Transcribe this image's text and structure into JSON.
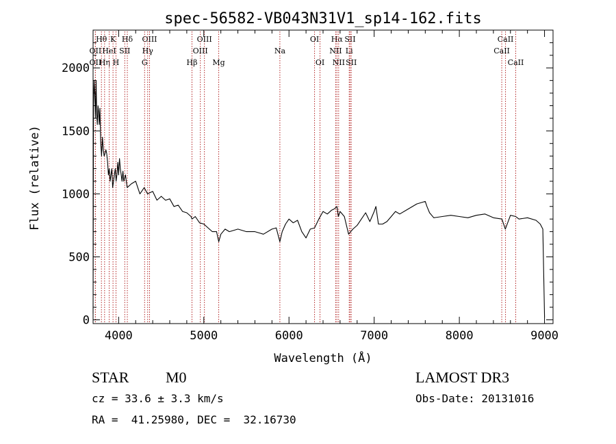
{
  "colors": {
    "line": "#000000",
    "marker": "#b22222",
    "background": "#ffffff"
  },
  "info": {
    "object_class": "STAR",
    "subclass": "M0",
    "survey": "LAMOST DR3",
    "cz": "cz = 33.6 ± 3.3 km/s",
    "obs_date": "Obs-Date: 20131016",
    "coords": "RA =  41.25980, DEC =  32.16730"
  },
  "chart_data": {
    "type": "line",
    "title": "spec-56582-VB043N31V1_sp14-162.fits",
    "xlabel": "Wavelength (Å)",
    "ylabel": "Flux (relative)",
    "xlim": [
      3700,
      9100
    ],
    "ylim": [
      -30,
      2300
    ],
    "xticks": [
      4000,
      5000,
      6000,
      7000,
      8000,
      9000
    ],
    "yticks": [
      0,
      500,
      1000,
      1500,
      2000
    ],
    "grid": false,
    "legend": "none",
    "series": [
      {
        "x": [
          3700,
          3705,
          3712,
          3720,
          3728,
          3735,
          3742,
          3750,
          3758,
          3765,
          3772,
          3780,
          3790,
          3800,
          3810,
          3820,
          3830,
          3840,
          3850,
          3860,
          3870,
          3880,
          3890,
          3900,
          3910,
          3920,
          3930,
          3940,
          3950,
          3960,
          3970,
          3980,
          3990,
          4000,
          4010,
          4020,
          4030,
          4040,
          4050,
          4060,
          4080,
          4100,
          4150,
          4200,
          4250,
          4300,
          4340,
          4400,
          4450,
          4500,
          4550,
          4600,
          4650,
          4700,
          4750,
          4800,
          4850,
          4861,
          4900,
          4950,
          5000,
          5050,
          5100,
          5150,
          5175,
          5200,
          5250,
          5300,
          5400,
          5500,
          5600,
          5700,
          5800,
          5850,
          5893,
          5920,
          5960,
          6000,
          6050,
          6100,
          6150,
          6200,
          6250,
          6300,
          6350,
          6400,
          6450,
          6500,
          6530,
          6563,
          6580,
          6600,
          6650,
          6700,
          6750,
          6800,
          6850,
          6900,
          6950,
          7000,
          7020,
          7050,
          7100,
          7150,
          7200,
          7250,
          7300,
          7400,
          7500,
          7600,
          7620,
          7650,
          7700,
          7800,
          7900,
          8000,
          8100,
          8200,
          8300,
          8400,
          8500,
          8540,
          8600,
          8662,
          8700,
          8800,
          8900,
          8950,
          8980,
          9000
        ],
        "y": [
          50,
          1700,
          1900,
          1800,
          1600,
          1900,
          1650,
          1550,
          1700,
          1650,
          1550,
          1680,
          1400,
          1300,
          1450,
          1350,
          1300,
          1320,
          1350,
          1320,
          1250,
          1150,
          1200,
          1100,
          1150,
          1200,
          1050,
          1100,
          1150,
          1200,
          1100,
          1150,
          1250,
          1150,
          1280,
          1200,
          1150,
          1100,
          1180,
          1100,
          1150,
          1050,
          1080,
          1100,
          1000,
          1050,
          1000,
          1020,
          950,
          980,
          950,
          960,
          900,
          910,
          860,
          850,
          820,
          800,
          820,
          770,
          760,
          730,
          700,
          700,
          620,
          680,
          720,
          700,
          720,
          700,
          700,
          680,
          720,
          730,
          620,
          700,
          760,
          800,
          770,
          790,
          700,
          650,
          720,
          730,
          800,
          860,
          840,
          870,
          880,
          900,
          820,
          860,
          820,
          680,
          720,
          750,
          800,
          850,
          780,
          860,
          900,
          760,
          760,
          780,
          820,
          860,
          840,
          880,
          920,
          940,
          900,
          850,
          810,
          820,
          830,
          820,
          810,
          830,
          840,
          810,
          800,
          720,
          830,
          820,
          800,
          810,
          790,
          760,
          720,
          20
        ]
      }
    ],
    "lines": [
      {
        "label": "Hθ",
        "wl": 3798,
        "row": 0
      },
      {
        "label": "OII",
        "wl": 3727,
        "row": 1
      },
      {
        "label": "OII",
        "wl": 3727,
        "row": 2
      },
      {
        "label": "Hη",
        "wl": 3835,
        "row": 2
      },
      {
        "label": "HeI",
        "wl": 3889,
        "row": 1
      },
      {
        "label": "K",
        "wl": 3934,
        "row": 0
      },
      {
        "label": "H",
        "wl": 3969,
        "row": 2
      },
      {
        "label": "Hδ",
        "wl": 4102,
        "row": 0
      },
      {
        "label": "SII",
        "wl": 4072,
        "row": 1
      },
      {
        "label": "OIII",
        "wl": 4363,
        "row": 0
      },
      {
        "label": "Hγ",
        "wl": 4341,
        "row": 1
      },
      {
        "label": "G",
        "wl": 4305,
        "row": 2
      },
      {
        "label": "Hβ",
        "wl": 4861,
        "row": 2
      },
      {
        "label": "OIII",
        "wl": 5007,
        "row": 0
      },
      {
        "label": "OIII",
        "wl": 4959,
        "row": 1
      },
      {
        "label": "Mg",
        "wl": 5175,
        "row": 2
      },
      {
        "label": "Na",
        "wl": 5893,
        "row": 1
      },
      {
        "label": "OI",
        "wl": 6300,
        "row": 0
      },
      {
        "label": "OI",
        "wl": 6364,
        "row": 2
      },
      {
        "label": "Hα",
        "wl": 6563,
        "row": 0
      },
      {
        "label": "NII",
        "wl": 6548,
        "row": 1
      },
      {
        "label": "NII",
        "wl": 6583,
        "row": 2
      },
      {
        "label": "SII",
        "wl": 6717,
        "row": 0
      },
      {
        "label": "Li",
        "wl": 6707,
        "row": 1
      },
      {
        "label": "SII",
        "wl": 6731,
        "row": 2
      },
      {
        "label": "CaII",
        "wl": 8542,
        "row": 0
      },
      {
        "label": "CaII",
        "wl": 8498,
        "row": 1
      },
      {
        "label": "CaII",
        "wl": 8662,
        "row": 2
      }
    ]
  }
}
